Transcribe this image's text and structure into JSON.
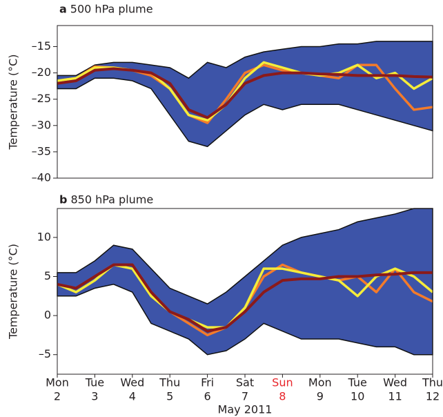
{
  "chart_data": [
    {
      "type": "plume",
      "panel": "a",
      "title": "500 hPa plume",
      "ylabel": "Temperature (°C)",
      "x": [
        2,
        2.5,
        3,
        3.5,
        4,
        4.5,
        5,
        5.5,
        6,
        6.5,
        7,
        7.5,
        8,
        8.5,
        9,
        9.5,
        10,
        10.5,
        11,
        11.5,
        12
      ],
      "xlim": [
        2,
        12
      ],
      "ylim": [
        -40,
        -11
      ],
      "yticks": [
        {
          "value": -40,
          "label": "–40"
        },
        {
          "value": -35,
          "label": "–35"
        },
        {
          "value": -30,
          "label": "–30"
        },
        {
          "value": -25,
          "label": "–25"
        },
        {
          "value": -20,
          "label": "–20"
        },
        {
          "value": -15,
          "label": "–15"
        }
      ],
      "band": {
        "color": "#3d54a8",
        "upper": [
          -20.5,
          -20.5,
          -18.5,
          -18,
          -18,
          -18.5,
          -19,
          -21,
          -18,
          -19,
          -17,
          -16,
          -15.5,
          -15,
          -15,
          -14.5,
          -14.5,
          -14,
          -14,
          -14,
          -14
        ],
        "lower": [
          -23,
          -23,
          -21,
          -21,
          -21.5,
          -23,
          -28,
          -33,
          -34,
          -31,
          -28,
          -26,
          -27,
          -26,
          -26,
          -26,
          -27,
          -28,
          -29,
          -30,
          -31
        ]
      },
      "series": [
        {
          "color": "#f47b2a",
          "values": [
            -21.5,
            -21,
            -18.8,
            -19,
            -19.5,
            -20.5,
            -23,
            -28,
            -29.5,
            -25,
            -20,
            -18.5,
            -19.5,
            -20,
            -20.5,
            -21,
            -18.5,
            -18.5,
            -23,
            -27,
            -26.5
          ]
        },
        {
          "color": "#f5ec3a",
          "values": [
            -21.5,
            -21,
            -19,
            -19,
            -19.5,
            -20,
            -23,
            -28,
            -29,
            -26,
            -21,
            -18,
            -19,
            -20,
            -20.5,
            -20,
            -18.5,
            -21,
            -20,
            -23,
            -21
          ]
        },
        {
          "color": "#8b1a1a",
          "values": [
            -22,
            -21.5,
            -19.5,
            -19.2,
            -19.5,
            -20,
            -22,
            -27,
            -28.5,
            -26,
            -22,
            -20.5,
            -20,
            -20,
            -20.2,
            -20.3,
            -20.5,
            -20.5,
            -20.5,
            -20.7,
            -20.8
          ]
        }
      ]
    },
    {
      "type": "plume",
      "panel": "b",
      "title": "850 hPa plume",
      "ylabel": "Temperature (°C)",
      "xlabel": "May 2011",
      "x": [
        2,
        2.5,
        3,
        3.5,
        4,
        4.5,
        5,
        5.5,
        6,
        6.5,
        7,
        7.5,
        8,
        8.5,
        9,
        9.5,
        10,
        10.5,
        11,
        11.5,
        12
      ],
      "xlim": [
        2,
        12
      ],
      "ylim": [
        -7.5,
        13.7
      ],
      "xticks": [
        2,
        3,
        4,
        5,
        6,
        7,
        8,
        9,
        10,
        11,
        12
      ],
      "xtick_weekdays": [
        "Mon",
        "Tue",
        "Wed",
        "Thu",
        "Fri",
        "Sat",
        "Sun",
        "Mon",
        "Tue",
        "Wed",
        "Thu"
      ],
      "highlight_tick": 8,
      "highlight_color": "#e8262b",
      "yticks": [
        {
          "value": -5,
          "label": "–5"
        },
        0,
        5,
        10
      ],
      "band": {
        "color": "#3d54a8",
        "upper": [
          5.5,
          5.5,
          7,
          9,
          8.5,
          6,
          3.5,
          2.5,
          1.5,
          3,
          5,
          7,
          9,
          10,
          10.5,
          11,
          12,
          12.5,
          13,
          13.7,
          13.7
        ],
        "lower": [
          2.5,
          2.5,
          3.5,
          4,
          3,
          -1,
          -2,
          -3,
          -5,
          -4.5,
          -3,
          -1,
          -2,
          -3,
          -3,
          -3,
          -3.5,
          -4,
          -4,
          -5,
          -5
        ]
      },
      "series": [
        {
          "color": "#f47b2a",
          "values": [
            4,
            3.5,
            5,
            6.5,
            6.5,
            3,
            0.5,
            -1,
            -2.5,
            -1.5,
            1,
            5,
            6.5,
            5.5,
            5,
            4.5,
            5,
            3,
            6,
            3,
            1.8
          ]
        },
        {
          "color": "#f5ec3a",
          "values": [
            4,
            3,
            4.5,
            6.5,
            6,
            2.5,
            0.5,
            -0.5,
            -1.5,
            -1.5,
            1,
            6,
            6,
            5.5,
            5,
            4.5,
            2.5,
            5,
            6,
            5,
            3
          ]
        },
        {
          "color": "#8b1a1a",
          "values": [
            4,
            3.5,
            5,
            6.5,
            6.5,
            3,
            0.5,
            -0.5,
            -2,
            -1.5,
            0.5,
            3,
            4.5,
            4.7,
            4.7,
            5,
            5,
            5.2,
            5.3,
            5.5,
            5.5
          ]
        }
      ]
    }
  ]
}
